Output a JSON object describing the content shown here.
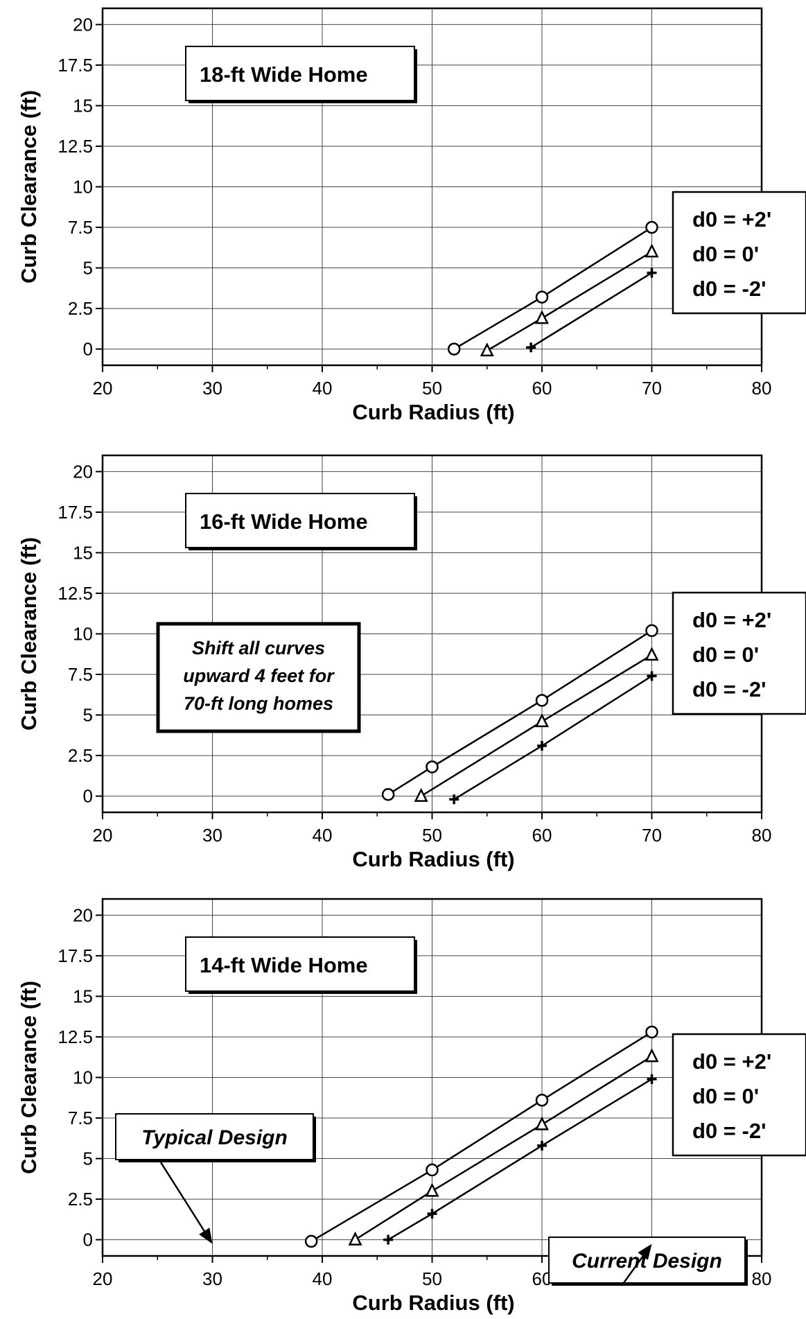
{
  "chart_data": [
    {
      "type": "line",
      "title": "18-ft Wide Home",
      "xlabel": "Curb Radius (ft)",
      "ylabel": "Curb Clearance (ft)",
      "xlim": [
        20,
        80
      ],
      "ylim": [
        -1,
        21
      ],
      "x_ticks": [
        "20",
        "30",
        "40",
        "50",
        "60",
        "70",
        "80"
      ],
      "y_ticks": [
        "0",
        "2.5",
        "5",
        "7.5",
        "10",
        "12.5",
        "15",
        "17.5",
        "20"
      ],
      "grid": true,
      "legend_position": "right",
      "series": [
        {
          "name": "d0 = +2'",
          "marker": "circle",
          "x": [
            52,
            60,
            70
          ],
          "y": [
            0,
            3.2,
            7.5
          ]
        },
        {
          "name": "d0 = 0'",
          "marker": "triangle",
          "x": [
            55,
            60,
            70
          ],
          "y": [
            -0.1,
            1.9,
            6.0
          ]
        },
        {
          "name": "d0 = -2'",
          "marker": "plus",
          "x": [
            59,
            70
          ],
          "y": [
            0.1,
            4.7
          ]
        }
      ]
    },
    {
      "type": "line",
      "title": "16-ft Wide Home",
      "xlabel": "Curb Radius (ft)",
      "ylabel": "Curb Clearance (ft)",
      "xlim": [
        20,
        80
      ],
      "ylim": [
        -1,
        21
      ],
      "x_ticks": [
        "20",
        "30",
        "40",
        "50",
        "60",
        "70",
        "80"
      ],
      "y_ticks": [
        "0",
        "2.5",
        "5",
        "7.5",
        "10",
        "12.5",
        "15",
        "17.5",
        "20"
      ],
      "grid": true,
      "legend_position": "right",
      "note": [
        "Shift all curves",
        "upward 4 feet for",
        "70-ft long homes"
      ],
      "series": [
        {
          "name": "d0 = +2'",
          "marker": "circle",
          "x": [
            46,
            50,
            60,
            70
          ],
          "y": [
            0.1,
            1.8,
            5.9,
            10.2
          ]
        },
        {
          "name": "d0 = 0'",
          "marker": "triangle",
          "x": [
            49,
            60,
            70
          ],
          "y": [
            0,
            4.6,
            8.7
          ]
        },
        {
          "name": "d0 = -2'",
          "marker": "plus",
          "x": [
            52,
            60,
            70
          ],
          "y": [
            -0.2,
            3.1,
            7.4
          ]
        }
      ]
    },
    {
      "type": "line",
      "title": "14-ft Wide Home",
      "xlabel": "Curb Radius (ft)",
      "ylabel": "Curb Clearance (ft)",
      "xlim": [
        20,
        80
      ],
      "ylim": [
        -1,
        21
      ],
      "x_ticks": [
        "20",
        "30",
        "40",
        "50",
        "60",
        "70",
        "80"
      ],
      "y_ticks": [
        "0",
        "2.5",
        "5",
        "7.5",
        "10",
        "12.5",
        "15",
        "17.5",
        "20"
      ],
      "grid": true,
      "legend_position": "right",
      "annotations": [
        {
          "text": "Typical Design",
          "points_to_x": 30
        },
        {
          "text": "Current Design",
          "points_to_x": 70
        }
      ],
      "series": [
        {
          "name": "d0 = +2'",
          "marker": "circle",
          "x": [
            39,
            50,
            60,
            70
          ],
          "y": [
            -0.1,
            4.3,
            8.6,
            12.8
          ]
        },
        {
          "name": "d0 = 0'",
          "marker": "triangle",
          "x": [
            43,
            50,
            60,
            70
          ],
          "y": [
            0,
            3.0,
            7.1,
            11.3
          ]
        },
        {
          "name": "d0 = -2'",
          "marker": "plus",
          "x": [
            46,
            50,
            60,
            70
          ],
          "y": [
            0,
            1.6,
            5.8,
            9.9
          ]
        }
      ]
    }
  ]
}
